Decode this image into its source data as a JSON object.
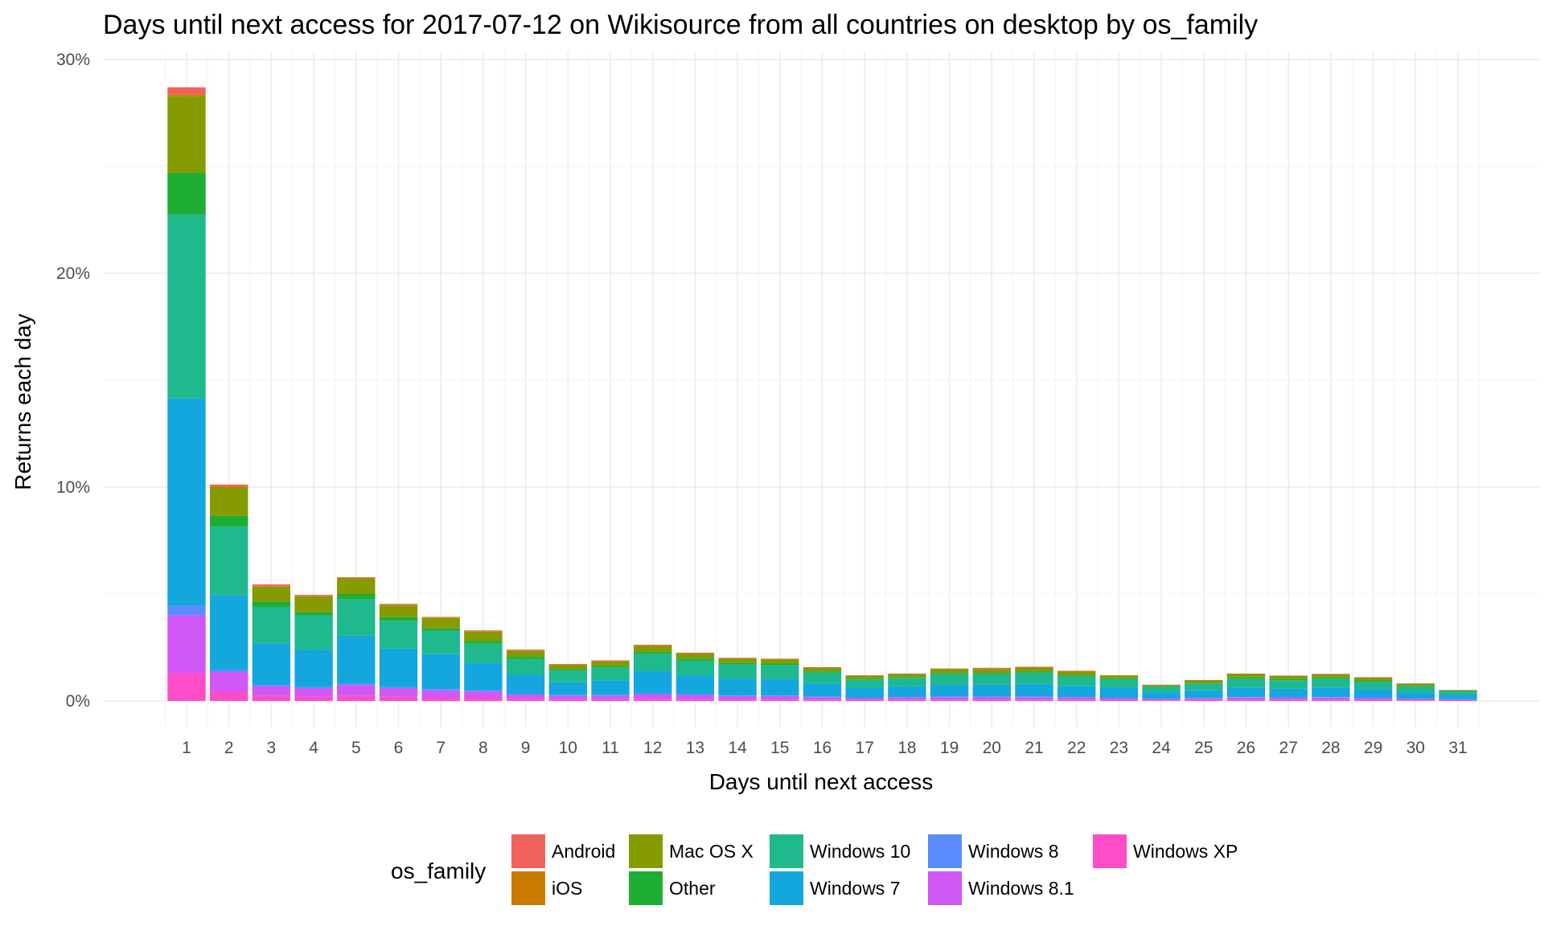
{
  "chart_data": {
    "type": "bar",
    "stacked": true,
    "title": "Days until next access for 2017-07-12 on Wikisource from all countries on desktop by os_family",
    "xlabel": "Days until next access",
    "ylabel": "Returns each day",
    "ylim": [
      0,
      30
    ],
    "y_ticks": [
      0,
      10,
      20,
      30
    ],
    "y_tick_labels": [
      "0%",
      "10%",
      "20%",
      "30%"
    ],
    "grid": true,
    "legend_position": "bottom",
    "legend_title": "os_family",
    "categories": [
      "1",
      "2",
      "3",
      "4",
      "5",
      "6",
      "7",
      "8",
      "9",
      "10",
      "11",
      "12",
      "13",
      "14",
      "15",
      "16",
      "17",
      "18",
      "19",
      "20",
      "21",
      "22",
      "23",
      "24",
      "25",
      "26",
      "27",
      "28",
      "29",
      "30",
      "31"
    ],
    "series": [
      {
        "name": "Windows XP",
        "color": "#FF4DC8",
        "values": [
          1.3,
          0.45,
          0.25,
          0.2,
          0.25,
          0.2,
          0.15,
          0.15,
          0.1,
          0.08,
          0.08,
          0.1,
          0.08,
          0.07,
          0.07,
          0.05,
          0.04,
          0.05,
          0.05,
          0.06,
          0.05,
          0.05,
          0.04,
          0.03,
          0.04,
          0.05,
          0.05,
          0.05,
          0.04,
          0.03,
          0.02
        ]
      },
      {
        "name": "Windows 8.1",
        "color": "#CF58F6",
        "values": [
          2.7,
          0.9,
          0.45,
          0.4,
          0.5,
          0.4,
          0.35,
          0.3,
          0.2,
          0.17,
          0.17,
          0.22,
          0.2,
          0.16,
          0.16,
          0.13,
          0.1,
          0.12,
          0.13,
          0.13,
          0.13,
          0.12,
          0.1,
          0.07,
          0.09,
          0.11,
          0.11,
          0.11,
          0.1,
          0.07,
          0.05
        ]
      },
      {
        "name": "Windows 8",
        "color": "#5A8CFF",
        "values": [
          0.45,
          0.1,
          0.05,
          0.05,
          0.05,
          0.05,
          0.04,
          0.03,
          0.02,
          0.02,
          0.02,
          0.02,
          0.02,
          0.02,
          0.02,
          0.02,
          0.01,
          0.01,
          0.02,
          0.02,
          0.02,
          0.01,
          0.01,
          0.01,
          0.01,
          0.02,
          0.01,
          0.02,
          0.01,
          0.01,
          0.01
        ]
      },
      {
        "name": "Windows 7",
        "color": "#13A7DE",
        "values": [
          9.7,
          3.5,
          1.95,
          1.75,
          2.25,
          1.8,
          1.65,
          1.3,
          0.9,
          0.6,
          0.7,
          1.05,
          0.9,
          0.8,
          0.78,
          0.62,
          0.45,
          0.5,
          0.55,
          0.55,
          0.6,
          0.52,
          0.45,
          0.3,
          0.36,
          0.45,
          0.4,
          0.45,
          0.4,
          0.3,
          0.22
        ]
      },
      {
        "name": "Windows 10",
        "color": "#1FB98E",
        "values": [
          8.6,
          3.2,
          1.7,
          1.6,
          1.7,
          1.3,
          1.1,
          0.9,
          0.75,
          0.55,
          0.6,
          0.8,
          0.7,
          0.65,
          0.65,
          0.5,
          0.4,
          0.4,
          0.5,
          0.5,
          0.52,
          0.45,
          0.42,
          0.25,
          0.32,
          0.42,
          0.4,
          0.42,
          0.35,
          0.27,
          0.15
        ]
      },
      {
        "name": "Other",
        "color": "#1DAE33",
        "values": [
          1.95,
          0.5,
          0.25,
          0.15,
          0.25,
          0.17,
          0.1,
          0.12,
          0.08,
          0.07,
          0.07,
          0.1,
          0.07,
          0.07,
          0.07,
          0.06,
          0.04,
          0.04,
          0.06,
          0.05,
          0.05,
          0.05,
          0.04,
          0.03,
          0.03,
          0.05,
          0.05,
          0.05,
          0.04,
          0.03,
          0.02
        ]
      },
      {
        "name": "Mac OS X",
        "color": "#859B00",
        "values": [
          3.6,
          1.35,
          0.7,
          0.75,
          0.75,
          0.55,
          0.5,
          0.45,
          0.3,
          0.2,
          0.22,
          0.3,
          0.25,
          0.22,
          0.2,
          0.17,
          0.15,
          0.14,
          0.18,
          0.18,
          0.2,
          0.18,
          0.13,
          0.06,
          0.12,
          0.15,
          0.15,
          0.14,
          0.15,
          0.1,
          0.03
        ]
      },
      {
        "name": "iOS",
        "color": "#C97B00",
        "values": [
          0.05,
          0.02,
          0.02,
          0.01,
          0.01,
          0.02,
          0.01,
          0.01,
          0.01,
          0.01,
          0.01,
          0.01,
          0.01,
          0.01,
          0.01,
          0.01,
          0.0,
          0.0,
          0.01,
          0.01,
          0.01,
          0.01,
          0.0,
          0.0,
          0.0,
          0.01,
          0.0,
          0.01,
          0.0,
          0.0,
          0.0
        ]
      },
      {
        "name": "Android",
        "color": "#F2625D",
        "values": [
          0.35,
          0.1,
          0.08,
          0.05,
          0.03,
          0.05,
          0.03,
          0.04,
          0.04,
          0.03,
          0.03,
          0.03,
          0.03,
          0.02,
          0.02,
          0.02,
          0.01,
          0.02,
          0.02,
          0.05,
          0.02,
          0.02,
          0.01,
          0.01,
          0.01,
          0.02,
          0.02,
          0.02,
          0.02,
          0.01,
          0.01
        ]
      }
    ],
    "legend_order": [
      "Android",
      "iOS",
      "Mac OS X",
      "Other",
      "Windows 10",
      "Windows 7",
      "Windows 8",
      "Windows 8.1",
      "Windows XP"
    ]
  }
}
